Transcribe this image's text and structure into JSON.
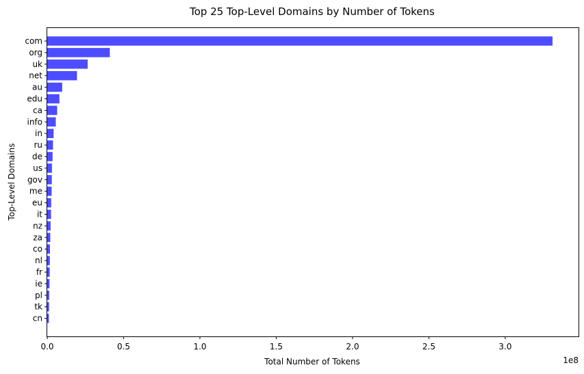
{
  "chart_data": {
    "type": "bar",
    "orientation": "horizontal",
    "title": "Top 25 Top-Level Domains by Number of Tokens",
    "xlabel": "Total Number of Tokens",
    "ylabel": "Top-Level Domains",
    "x_offset_label": "1e8",
    "x_scale": 100000000,
    "xlim": [
      0,
      3.48
    ],
    "xticks": [
      0.0,
      0.5,
      1.0,
      1.5,
      2.0,
      2.5,
      3.0
    ],
    "xtick_labels": [
      "0.0",
      "0.5",
      "1.0",
      "1.5",
      "2.0",
      "2.5",
      "3.0"
    ],
    "grid": false,
    "legend": "none",
    "bar_color": "#4d4dff",
    "categories": [
      "com",
      "org",
      "uk",
      "net",
      "au",
      "edu",
      "ca",
      "info",
      "in",
      "ru",
      "de",
      "us",
      "gov",
      "me",
      "eu",
      "it",
      "nz",
      "za",
      "co",
      "nl",
      "fr",
      "ie",
      "pl",
      "tk",
      "cn"
    ],
    "values": [
      331000000,
      41000000,
      26500000,
      19500000,
      9800000,
      8000000,
      6500000,
      5600000,
      4200000,
      3800000,
      3500000,
      3100000,
      3000000,
      2900000,
      2600000,
      2500000,
      2200000,
      2000000,
      1800000,
      1700000,
      1600000,
      1500000,
      1300000,
      1200000,
      1100000
    ]
  }
}
